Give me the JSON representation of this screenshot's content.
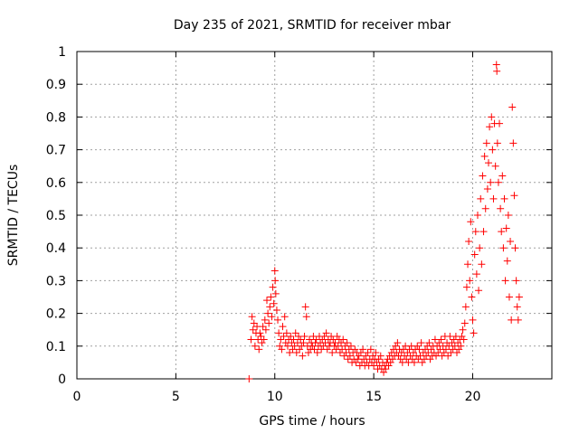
{
  "chart_data": {
    "type": "scatter",
    "title": "Day 235 of 2021, SRMTID for receiver mbar",
    "xlabel": "GPS time / hours",
    "ylabel": "SRMTID / TECUs",
    "xlim": [
      0,
      24
    ],
    "ylim": [
      0,
      1
    ],
    "xticks": [
      0,
      5,
      10,
      15,
      20
    ],
    "xtick_labels": [
      "0",
      "5",
      "10",
      "15",
      "20"
    ],
    "yticks": [
      0,
      0.1,
      0.2,
      0.3,
      0.4,
      0.5,
      0.6,
      0.7,
      0.8,
      0.9,
      1
    ],
    "ytick_labels": [
      "0",
      "0.1",
      "0.2",
      "0.3",
      "0.4",
      "0.5",
      "0.6",
      "0.7",
      "0.8",
      "0.9",
      "1"
    ],
    "grid": true,
    "marker": "plus",
    "color": "#ff0000",
    "series": [
      {
        "name": "SRMTID",
        "points": [
          [
            8.7,
            0.0
          ],
          [
            8.8,
            0.12
          ],
          [
            8.85,
            0.19
          ],
          [
            8.9,
            0.15
          ],
          [
            8.95,
            0.17
          ],
          [
            9.0,
            0.1
          ],
          [
            9.05,
            0.14
          ],
          [
            9.1,
            0.16
          ],
          [
            9.15,
            0.12
          ],
          [
            9.2,
            0.09
          ],
          [
            9.25,
            0.14
          ],
          [
            9.3,
            0.13
          ],
          [
            9.35,
            0.11
          ],
          [
            9.4,
            0.16
          ],
          [
            9.45,
            0.12
          ],
          [
            9.5,
            0.18
          ],
          [
            9.55,
            0.15
          ],
          [
            9.6,
            0.24
          ],
          [
            9.65,
            0.2
          ],
          [
            9.7,
            0.17
          ],
          [
            9.75,
            0.22
          ],
          [
            9.8,
            0.25
          ],
          [
            9.85,
            0.19
          ],
          [
            9.9,
            0.28
          ],
          [
            9.95,
            0.23
          ],
          [
            10.0,
            0.33
          ],
          [
            10.02,
            0.3
          ],
          [
            10.05,
            0.26
          ],
          [
            10.1,
            0.21
          ],
          [
            10.15,
            0.18
          ],
          [
            10.2,
            0.14
          ],
          [
            10.25,
            0.1
          ],
          [
            10.3,
            0.12
          ],
          [
            10.35,
            0.09
          ],
          [
            10.4,
            0.16
          ],
          [
            10.45,
            0.13
          ],
          [
            10.5,
            0.19
          ],
          [
            10.55,
            0.11
          ],
          [
            10.6,
            0.14
          ],
          [
            10.65,
            0.1
          ],
          [
            10.7,
            0.12
          ],
          [
            10.75,
            0.08
          ],
          [
            10.8,
            0.13
          ],
          [
            10.85,
            0.11
          ],
          [
            10.9,
            0.09
          ],
          [
            10.95,
            0.12
          ],
          [
            11.0,
            0.1
          ],
          [
            11.05,
            0.14
          ],
          [
            11.1,
            0.08
          ],
          [
            11.15,
            0.11
          ],
          [
            11.2,
            0.13
          ],
          [
            11.25,
            0.09
          ],
          [
            11.3,
            0.12
          ],
          [
            11.35,
            0.1
          ],
          [
            11.4,
            0.07
          ],
          [
            11.45,
            0.11
          ],
          [
            11.5,
            0.13
          ],
          [
            11.55,
            0.22
          ],
          [
            11.6,
            0.19
          ],
          [
            11.65,
            0.1
          ],
          [
            11.7,
            0.08
          ],
          [
            11.75,
            0.12
          ],
          [
            11.8,
            0.09
          ],
          [
            11.85,
            0.11
          ],
          [
            11.9,
            0.1
          ],
          [
            11.95,
            0.13
          ],
          [
            12.0,
            0.09
          ],
          [
            12.05,
            0.11
          ],
          [
            12.1,
            0.12
          ],
          [
            12.15,
            0.08
          ],
          [
            12.2,
            0.1
          ],
          [
            12.25,
            0.13
          ],
          [
            12.3,
            0.11
          ],
          [
            12.35,
            0.09
          ],
          [
            12.4,
            0.12
          ],
          [
            12.45,
            0.1
          ],
          [
            12.5,
            0.13
          ],
          [
            12.55,
            0.11
          ],
          [
            12.6,
            0.14
          ],
          [
            12.65,
            0.09
          ],
          [
            12.7,
            0.12
          ],
          [
            12.75,
            0.1
          ],
          [
            12.8,
            0.11
          ],
          [
            12.85,
            0.13
          ],
          [
            12.9,
            0.08
          ],
          [
            12.95,
            0.12
          ],
          [
            13.0,
            0.1
          ],
          [
            13.05,
            0.11
          ],
          [
            13.1,
            0.09
          ],
          [
            13.15,
            0.13
          ],
          [
            13.2,
            0.1
          ],
          [
            13.25,
            0.12
          ],
          [
            13.3,
            0.08
          ],
          [
            13.35,
            0.11
          ],
          [
            13.4,
            0.09
          ],
          [
            13.45,
            0.12
          ],
          [
            13.5,
            0.07
          ],
          [
            13.55,
            0.1
          ],
          [
            13.6,
            0.08
          ],
          [
            13.65,
            0.11
          ],
          [
            13.7,
            0.06
          ],
          [
            13.75,
            0.09
          ],
          [
            13.8,
            0.07
          ],
          [
            13.85,
            0.1
          ],
          [
            13.9,
            0.05
          ],
          [
            13.95,
            0.08
          ],
          [
            14.0,
            0.06
          ],
          [
            14.05,
            0.09
          ],
          [
            14.1,
            0.05
          ],
          [
            14.15,
            0.08
          ],
          [
            14.2,
            0.06
          ],
          [
            14.25,
            0.07
          ],
          [
            14.3,
            0.04
          ],
          [
            14.35,
            0.08
          ],
          [
            14.4,
            0.05
          ],
          [
            14.45,
            0.09
          ],
          [
            14.5,
            0.06
          ],
          [
            14.55,
            0.04
          ],
          [
            14.6,
            0.07
          ],
          [
            14.65,
            0.05
          ],
          [
            14.7,
            0.08
          ],
          [
            14.75,
            0.04
          ],
          [
            14.8,
            0.06
          ],
          [
            14.85,
            0.09
          ],
          [
            14.9,
            0.05
          ],
          [
            14.95,
            0.07
          ],
          [
            15.0,
            0.04
          ],
          [
            15.05,
            0.06
          ],
          [
            15.1,
            0.08
          ],
          [
            15.15,
            0.05
          ],
          [
            15.2,
            0.03
          ],
          [
            15.25,
            0.06
          ],
          [
            15.3,
            0.04
          ],
          [
            15.35,
            0.07
          ],
          [
            15.4,
            0.03
          ],
          [
            15.45,
            0.05
          ],
          [
            15.5,
            0.02
          ],
          [
            15.55,
            0.04
          ],
          [
            15.6,
            0.03
          ],
          [
            15.65,
            0.05
          ],
          [
            15.7,
            0.06
          ],
          [
            15.75,
            0.04
          ],
          [
            15.8,
            0.07
          ],
          [
            15.85,
            0.05
          ],
          [
            15.9,
            0.08
          ],
          [
            15.95,
            0.06
          ],
          [
            16.0,
            0.09
          ],
          [
            16.05,
            0.07
          ],
          [
            16.1,
            0.1
          ],
          [
            16.15,
            0.08
          ],
          [
            16.2,
            0.11
          ],
          [
            16.25,
            0.07
          ],
          [
            16.3,
            0.09
          ],
          [
            16.35,
            0.06
          ],
          [
            16.4,
            0.08
          ],
          [
            16.45,
            0.05
          ],
          [
            16.5,
            0.09
          ],
          [
            16.55,
            0.07
          ],
          [
            16.6,
            0.1
          ],
          [
            16.65,
            0.06
          ],
          [
            16.7,
            0.08
          ],
          [
            16.75,
            0.05
          ],
          [
            16.8,
            0.09
          ],
          [
            16.85,
            0.07
          ],
          [
            16.9,
            0.1
          ],
          [
            16.95,
            0.06
          ],
          [
            17.0,
            0.08
          ],
          [
            17.05,
            0.05
          ],
          [
            17.1,
            0.09
          ],
          [
            17.15,
            0.07
          ],
          [
            17.2,
            0.1
          ],
          [
            17.25,
            0.06
          ],
          [
            17.3,
            0.09
          ],
          [
            17.35,
            0.07
          ],
          [
            17.4,
            0.11
          ],
          [
            17.45,
            0.05
          ],
          [
            17.5,
            0.08
          ],
          [
            17.55,
            0.06
          ],
          [
            17.6,
            0.09
          ],
          [
            17.65,
            0.07
          ],
          [
            17.7,
            0.1
          ],
          [
            17.75,
            0.08
          ],
          [
            17.8,
            0.11
          ],
          [
            17.85,
            0.06
          ],
          [
            17.9,
            0.09
          ],
          [
            17.95,
            0.07
          ],
          [
            18.0,
            0.1
          ],
          [
            18.05,
            0.08
          ],
          [
            18.1,
            0.12
          ],
          [
            18.15,
            0.07
          ],
          [
            18.2,
            0.1
          ],
          [
            18.25,
            0.08
          ],
          [
            18.3,
            0.11
          ],
          [
            18.35,
            0.09
          ],
          [
            18.4,
            0.12
          ],
          [
            18.45,
            0.07
          ],
          [
            18.5,
            0.1
          ],
          [
            18.55,
            0.08
          ],
          [
            18.6,
            0.13
          ],
          [
            18.65,
            0.09
          ],
          [
            18.7,
            0.11
          ],
          [
            18.75,
            0.07
          ],
          [
            18.8,
            0.1
          ],
          [
            18.85,
            0.13
          ],
          [
            18.9,
            0.08
          ],
          [
            18.95,
            0.11
          ],
          [
            19.0,
            0.09
          ],
          [
            19.05,
            0.12
          ],
          [
            19.1,
            0.1
          ],
          [
            19.15,
            0.13
          ],
          [
            19.2,
            0.08
          ],
          [
            19.25,
            0.11
          ],
          [
            19.3,
            0.09
          ],
          [
            19.35,
            0.12
          ],
          [
            19.4,
            0.1
          ],
          [
            19.45,
            0.13
          ],
          [
            19.5,
            0.15
          ],
          [
            19.55,
            0.12
          ],
          [
            19.6,
            0.17
          ],
          [
            19.65,
            0.22
          ],
          [
            19.7,
            0.28
          ],
          [
            19.75,
            0.35
          ],
          [
            19.8,
            0.42
          ],
          [
            19.85,
            0.3
          ],
          [
            19.9,
            0.48
          ],
          [
            19.95,
            0.25
          ],
          [
            20.0,
            0.18
          ],
          [
            20.05,
            0.14
          ],
          [
            20.1,
            0.38
          ],
          [
            20.15,
            0.45
          ],
          [
            20.2,
            0.32
          ],
          [
            20.25,
            0.5
          ],
          [
            20.3,
            0.27
          ],
          [
            20.35,
            0.4
          ],
          [
            20.4,
            0.55
          ],
          [
            20.45,
            0.35
          ],
          [
            20.5,
            0.62
          ],
          [
            20.55,
            0.45
          ],
          [
            20.6,
            0.68
          ],
          [
            20.65,
            0.52
          ],
          [
            20.7,
            0.72
          ],
          [
            20.75,
            0.58
          ],
          [
            20.8,
            0.66
          ],
          [
            20.85,
            0.77
          ],
          [
            20.9,
            0.6
          ],
          [
            20.95,
            0.8
          ],
          [
            21.0,
            0.7
          ],
          [
            21.05,
            0.55
          ],
          [
            21.1,
            0.78
          ],
          [
            21.15,
            0.65
          ],
          [
            21.2,
            0.96
          ],
          [
            21.22,
            0.94
          ],
          [
            21.25,
            0.72
          ],
          [
            21.3,
            0.6
          ],
          [
            21.35,
            0.78
          ],
          [
            21.4,
            0.52
          ],
          [
            21.45,
            0.45
          ],
          [
            21.5,
            0.62
          ],
          [
            21.55,
            0.4
          ],
          [
            21.6,
            0.55
          ],
          [
            21.65,
            0.3
          ],
          [
            21.7,
            0.46
          ],
          [
            21.75,
            0.36
          ],
          [
            21.8,
            0.5
          ],
          [
            21.85,
            0.25
          ],
          [
            21.9,
            0.42
          ],
          [
            21.95,
            0.18
          ],
          [
            22.0,
            0.83
          ],
          [
            22.05,
            0.72
          ],
          [
            22.1,
            0.56
          ],
          [
            22.15,
            0.4
          ],
          [
            22.2,
            0.3
          ],
          [
            22.25,
            0.22
          ],
          [
            22.3,
            0.18
          ],
          [
            22.35,
            0.25
          ]
        ]
      }
    ]
  }
}
